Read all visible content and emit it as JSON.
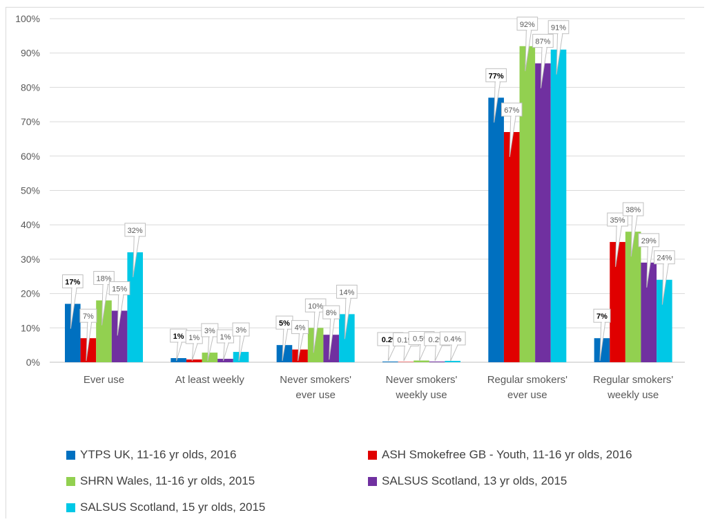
{
  "chart_data": {
    "type": "bar",
    "title": "",
    "xlabel": "",
    "ylabel": "",
    "ylim": [
      0,
      100
    ],
    "y_ticks": [
      "0%",
      "10%",
      "20%",
      "30%",
      "40%",
      "50%",
      "60%",
      "70%",
      "80%",
      "90%",
      "100%"
    ],
    "grid": true,
    "legend_position": "bottom",
    "categories": [
      [
        "Ever use"
      ],
      [
        "At least weekly"
      ],
      [
        "Never smokers'",
        "ever use"
      ],
      [
        "Never smokers'",
        "weekly use"
      ],
      [
        "Regular smokers'",
        "ever use"
      ],
      [
        "Regular smokers'",
        "weekly use"
      ]
    ],
    "series": [
      {
        "name": "YTPS UK, 11-16 yr olds, 2016",
        "color": "#0070c0",
        "values": [
          17,
          1.2,
          5,
          0.2,
          77,
          7
        ],
        "labels": [
          "17%",
          "1%",
          "5%",
          "0.2%",
          "77%",
          "7%"
        ]
      },
      {
        "name": "ASH Smokefree GB - Youth, 11-16 yr olds, 2016",
        "color": "#e00000",
        "values": [
          7,
          0.8,
          3.7,
          0.1,
          67,
          35
        ],
        "labels": [
          "7%",
          "1%",
          "4%",
          "0.1%",
          "67%",
          "35%"
        ]
      },
      {
        "name": "SHRN Wales, 11-16 yr olds, 2015",
        "color": "#92d050",
        "values": [
          18,
          2.8,
          10,
          0.5,
          92,
          38
        ],
        "labels": [
          "18%",
          "3%",
          "10%",
          "0.5%",
          "92%",
          "38%"
        ]
      },
      {
        "name": "SALSUS Scotland, 13 yr olds, 2015",
        "color": "#7030a0",
        "values": [
          15,
          1,
          8,
          0.2,
          87,
          29
        ],
        "labels": [
          "15%",
          "1%",
          "8%",
          "0.2%",
          "87%",
          "29%"
        ]
      },
      {
        "name": "SALSUS Scotland, 15 yr olds, 2015",
        "color": "#00c8e6",
        "values": [
          32,
          3,
          14,
          0.4,
          91,
          24
        ],
        "labels": [
          "32%",
          "3%",
          "14%",
          "0.4%",
          "91%",
          "24%"
        ]
      }
    ]
  }
}
